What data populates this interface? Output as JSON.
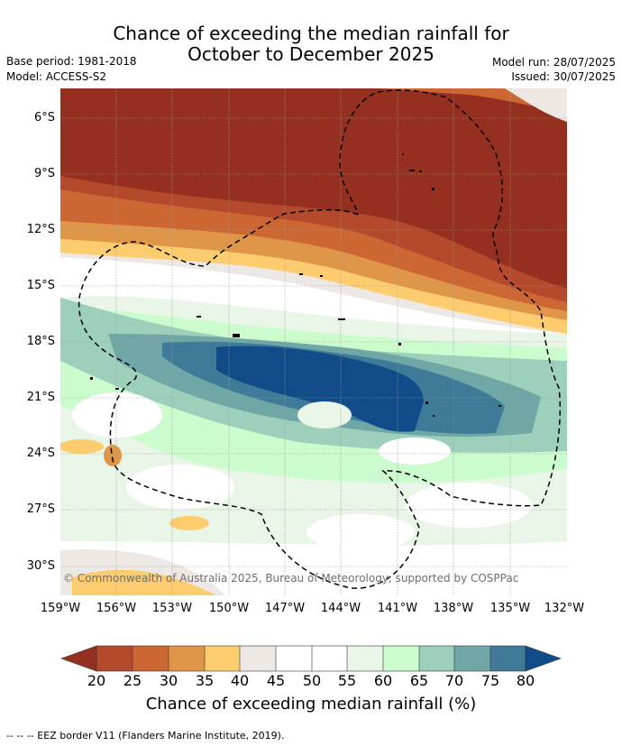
{
  "title_line1": "Chance of exceeding the median rainfall for",
  "title_line2": "October to December 2025",
  "base_period": "Base period: 1981-2018",
  "model": "Model: ACCESS-S2",
  "model_run": "Model run: 28/07/2025",
  "issued": "Issued: 30/07/2025",
  "lat_labels": [
    "6°S",
    "9°S",
    "12°S",
    "15°S",
    "18°S",
    "21°S",
    "24°S",
    "27°S",
    "30°S"
  ],
  "lon_labels": [
    "159°W",
    "156°W",
    "153°W",
    "150°W",
    "147°W",
    "144°W",
    "141°W",
    "138°W",
    "135°W",
    "132°W"
  ],
  "copyright": "© Commonwealth of Australia 2025, Bureau of Meteorology, supported by COSPPac",
  "colorbar": {
    "ticks": [
      "20",
      "25",
      "30",
      "35",
      "40",
      "45",
      "50",
      "55",
      "60",
      "65",
      "70",
      "75",
      "80"
    ],
    "colors": [
      "#953020",
      "#b5492b",
      "#cc6734",
      "#e09648",
      "#fdcc6e",
      "#ede8e3",
      "#ffffff",
      "#ffffff",
      "#e8f5e7",
      "#ccfccd",
      "#9dd0bb",
      "#6fa7a6",
      "#3f7b99",
      "#114c89"
    ],
    "title": "Chance of exceeding median rainfall (%)"
  },
  "footer": "--  --  -- EEZ border V11 (Flanders Marine Institute, 2019)."
}
